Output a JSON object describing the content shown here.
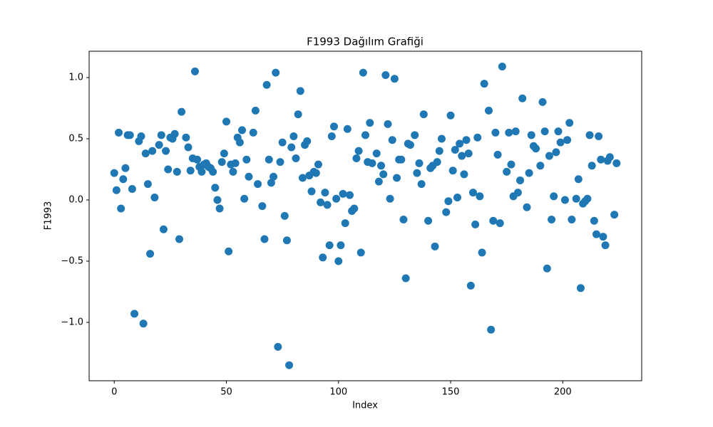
{
  "chart_data": {
    "type": "scatter",
    "title": "F1993 Dağılım Grafiği",
    "xlabel": "Index",
    "ylabel": "F1993",
    "color": "#1f77b4",
    "xlim": [
      -11.2,
      235.2
    ],
    "ylim": [
      -1.477,
      1.215
    ],
    "xticks": [
      0,
      50,
      100,
      150,
      200
    ],
    "yticks": [
      {
        "value": -1.0,
        "label": "−1.0"
      },
      {
        "value": -0.5,
        "label": "−0.5"
      },
      {
        "value": 0.0,
        "label": "0.0"
      },
      {
        "value": 0.5,
        "label": "0.5"
      },
      {
        "value": 1.0,
        "label": "1.0"
      }
    ],
    "x": [
      0,
      1,
      2,
      3,
      4,
      5,
      6,
      7,
      8,
      9,
      11,
      12,
      13,
      14,
      15,
      16,
      17,
      18,
      20,
      21,
      22,
      23,
      24,
      25,
      26,
      27,
      28,
      29,
      30,
      32,
      33,
      34,
      35,
      36,
      37,
      38,
      39,
      40,
      41,
      42,
      43,
      44,
      45,
      46,
      47,
      48,
      49,
      50,
      51,
      52,
      53,
      54,
      55,
      56,
      57,
      58,
      59,
      60,
      62,
      63,
      64,
      66,
      67,
      68,
      69,
      70,
      71,
      72,
      73,
      74,
      75,
      76,
      77,
      78,
      79,
      80,
      81,
      82,
      83,
      84,
      85,
      86,
      87,
      88,
      89,
      90,
      91,
      92,
      93,
      94,
      95,
      96,
      97,
      98,
      99,
      100,
      101,
      102,
      103,
      104,
      105,
      106,
      107,
      108,
      109,
      110,
      111,
      112,
      113,
      114,
      115,
      117,
      118,
      119,
      120,
      121,
      122,
      123,
      124,
      125,
      126,
      127,
      128,
      129,
      130,
      131,
      132,
      134,
      135,
      136,
      137,
      138,
      140,
      141,
      142,
      143,
      144,
      145,
      146,
      148,
      149,
      150,
      151,
      152,
      153,
      154,
      155,
      156,
      157,
      158,
      159,
      160,
      161,
      162,
      163,
      164,
      165,
      167,
      168,
      169,
      170,
      171,
      172,
      173,
      175,
      176,
      177,
      178,
      179,
      180,
      181,
      182,
      184,
      185,
      186,
      187,
      188,
      190,
      191,
      192,
      193,
      194,
      195,
      196,
      197,
      198,
      199,
      201,
      202,
      203,
      204,
      206,
      207,
      208,
      209,
      210,
      211,
      212,
      213,
      214,
      215,
      216,
      217,
      218,
      219,
      220,
      221,
      223,
      224
    ],
    "values": [
      0.22,
      0.08,
      0.55,
      -0.07,
      0.17,
      0.26,
      0.53,
      0.53,
      0.09,
      -0.93,
      0.48,
      0.52,
      -1.01,
      0.38,
      0.13,
      -0.44,
      0.4,
      0.02,
      0.45,
      0.53,
      -0.24,
      0.4,
      0.25,
      0.51,
      0.5,
      0.54,
      0.23,
      -0.32,
      0.72,
      0.51,
      0.43,
      0.24,
      0.34,
      1.05,
      0.33,
      0.27,
      0.23,
      0.29,
      0.3,
      0.27,
      0.26,
      0.23,
      0.1,
      0.0,
      -0.07,
      0.31,
      0.38,
      0.64,
      -0.42,
      0.29,
      0.23,
      0.3,
      0.51,
      0.47,
      0.57,
      0.01,
      0.33,
      0.19,
      0.55,
      0.73,
      0.13,
      -0.05,
      -0.32,
      0.94,
      0.33,
      0.14,
      0.19,
      1.04,
      -1.2,
      0.31,
      0.47,
      -0.13,
      -0.33,
      -1.35,
      0.43,
      0.52,
      0.34,
      0.7,
      0.89,
      0.18,
      0.45,
      0.48,
      0.2,
      0.07,
      0.23,
      0.22,
      0.29,
      -0.02,
      -0.47,
      0.06,
      -0.04,
      -0.37,
      0.52,
      0.6,
      0.01,
      -0.5,
      -0.37,
      0.05,
      -0.19,
      0.58,
      0.04,
      -0.09,
      -0.07,
      0.34,
      0.4,
      -0.43,
      1.04,
      0.53,
      0.31,
      0.63,
      0.3,
      0.38,
      0.15,
      0.28,
      0.21,
      1.02,
      0.62,
      0.01,
      0.49,
      0.99,
      0.18,
      0.33,
      0.33,
      -0.16,
      -0.64,
      0.46,
      0.45,
      0.53,
      0.22,
      0.3,
      0.13,
      0.7,
      -0.17,
      0.26,
      0.28,
      -0.38,
      0.31,
      0.4,
      0.5,
      -0.1,
      -0.01,
      0.69,
      0.24,
      0.41,
      0.02,
      0.46,
      0.36,
      0.21,
      0.49,
      0.38,
      -0.7,
      0.06,
      -0.2,
      0.51,
      0.03,
      -0.43,
      0.95,
      0.73,
      -1.06,
      -0.17,
      0.55,
      0.37,
      -0.19,
      1.09,
      0.23,
      0.55,
      0.29,
      0.03,
      0.56,
      0.06,
      0.16,
      0.83,
      -0.06,
      0.22,
      0.53,
      0.44,
      0.42,
      0.28,
      0.8,
      0.56,
      -0.56,
      0.36,
      -0.16,
      0.03,
      0.39,
      0.56,
      0.47,
      0.0,
      0.49,
      0.63,
      -0.16,
      0.01,
      0.17,
      -0.72,
      -0.03,
      -0.01,
      0.01,
      0.53,
      0.28,
      -0.17,
      -0.28,
      0.52,
      0.33,
      -0.3,
      -0.37,
      0.32,
      0.35,
      -0.12,
      0.3
    ]
  }
}
